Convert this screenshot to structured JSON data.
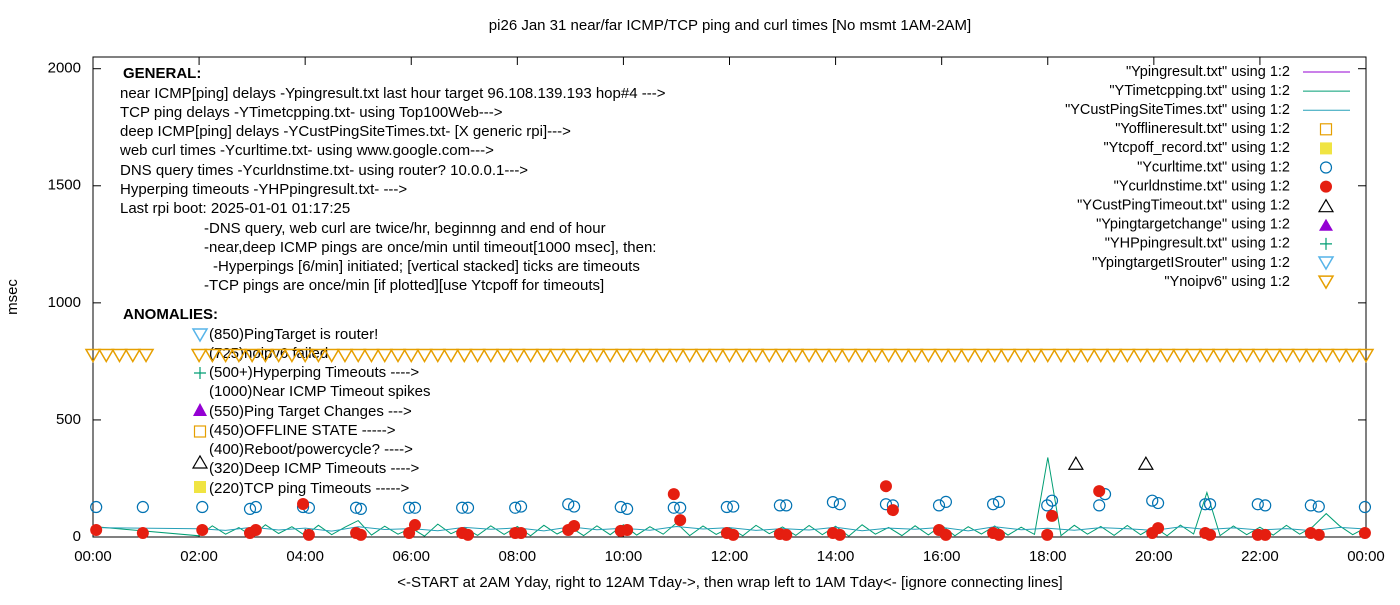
{
  "chart_data": {
    "type": "scatter",
    "title": "pi26 Jan 31  near/far ICMP/TCP ping and curl times [No msmt 1AM-2AM]",
    "x_label": "<-START at 2AM Yday, right to 12AM Tday->, then wrap left to 1AM Tday<- [ignore connecting lines]",
    "y_label": "msec",
    "xlim": [
      0,
      24
    ],
    "xticks": [
      {
        "value": 0,
        "label": "00:00"
      },
      {
        "value": 2,
        "label": "02:00"
      },
      {
        "value": 4,
        "label": "04:00"
      },
      {
        "value": 6,
        "label": "06:00"
      },
      {
        "value": 8,
        "label": "08:00"
      },
      {
        "value": 10,
        "label": "10:00"
      },
      {
        "value": 12,
        "label": "12:00"
      },
      {
        "value": 14,
        "label": "14:00"
      },
      {
        "value": 16,
        "label": "16:00"
      },
      {
        "value": 18,
        "label": "18:00"
      },
      {
        "value": 20,
        "label": "20:00"
      },
      {
        "value": 22,
        "label": "22:00"
      },
      {
        "value": 24,
        "label": "00:00"
      }
    ],
    "ylim": [
      0,
      2050
    ],
    "yticks": [
      0,
      500,
      1000,
      1500,
      2000
    ],
    "legend": "top-right",
    "annotations": {
      "general_heading": "GENERAL:",
      "general": [
        "near ICMP[ping] delays -Ypingresult.txt last hour target 96.108.139.193 hop#4 --->",
        "TCP ping delays -YTimetcpping.txt- using Top100Web--->",
        "deep ICMP[ping] delays -YCustPingSiteTimes.txt- [X generic rpi]--->",
        "web curl times -Ycurltime.txt- using www.google.com--->",
        "DNS query times -Ycurldnstime.txt- using router? 10.0.0.1--->",
        "Hyperping timeouts -YHPpingresult.txt- --->",
        "Last rpi boot: 2025-01-01 01:17:25",
        "-DNS query, web curl are twice/hr, beginnng and end of hour",
        "-near,deep ICMP pings are once/min until timeout[1000 msec], then:",
        "-Hyperpings [6/min] initiated; [vertical stacked] ticks are timeouts",
        "-TCP pings are once/min [if plotted][use Ytcpoff for timeouts]"
      ],
      "anomalies_heading": "ANOMALIES:",
      "anomalies": [
        "(850)PingTarget is router!",
        "(725)noipv6 failed",
        "(500+)Hyperping Timeouts ---->",
        "(1000)Near ICMP Timeout spikes",
        "(550)Ping Target Changes --->",
        "(450)OFFLINE STATE ----->",
        "(400)Reboot/powercycle? ---->",
        "(320)Deep ICMP Timeouts ---->",
        "(220)TCP ping Timeouts ----->"
      ]
    },
    "series": [
      {
        "name": "\"Ypingresult.txt\" using 1:2",
        "color": "#9400d3",
        "marker": "line",
        "x": [],
        "values": []
      },
      {
        "name": "\"YTimetcpping.txt\" using 1:2",
        "color": "#009e73",
        "marker": "line",
        "x": [
          0,
          2,
          2.25,
          2.5,
          2.75,
          3,
          3.25,
          3.5,
          3.75,
          4,
          4.25,
          4.5,
          4.75,
          5,
          5.25,
          5.5,
          5.75,
          6,
          6.25,
          6.5,
          6.75,
          7,
          7.25,
          7.5,
          7.75,
          8,
          8.25,
          8.5,
          8.75,
          9,
          9.25,
          9.5,
          9.75,
          10,
          10.25,
          10.5,
          10.75,
          11,
          11.25,
          11.5,
          11.75,
          12,
          12.25,
          12.5,
          12.75,
          13,
          13.25,
          13.5,
          13.75,
          14,
          14.25,
          14.5,
          14.75,
          15,
          15.25,
          15.5,
          15.75,
          16,
          16.25,
          16.5,
          16.75,
          17,
          17.25,
          17.5,
          17.75,
          18,
          18.25,
          18.5,
          18.75,
          19,
          19.25,
          19.5,
          19.75,
          20,
          20.25,
          20.5,
          20.75,
          21,
          21.25,
          21.5,
          21.75,
          22,
          22.25,
          22.5,
          22.75,
          23,
          23.25,
          23.5,
          23.75,
          24
        ],
        "values": [
          45,
          5,
          48,
          12,
          40,
          3,
          52,
          15,
          44,
          6,
          50,
          10,
          42,
          70,
          8,
          46,
          12,
          38,
          4,
          55,
          14,
          40,
          7,
          48,
          11,
          45,
          5,
          50,
          13,
          42,
          6,
          48,
          10,
          52,
          8,
          44,
          12,
          60,
          6,
          47,
          11,
          40,
          5,
          50,
          14,
          43,
          7,
          49,
          10,
          46,
          4,
          52,
          12,
          41,
          6,
          48,
          9,
          50,
          5,
          44,
          13,
          47,
          8,
          42,
          11,
          340,
          6,
          50,
          12,
          45,
          7,
          49,
          10,
          44,
          5,
          51,
          13,
          190,
          6,
          47,
          10,
          42,
          8,
          50,
          12,
          45,
          100,
          48,
          10,
          40
        ]
      },
      {
        "name": "\"YCustPingSiteTimes.txt\" using 1:2",
        "color": "#26a0b8",
        "marker": "line",
        "x": [
          0,
          2,
          2.5,
          3,
          3.5,
          4,
          4.5,
          5,
          5.5,
          6,
          6.5,
          7,
          7.5,
          8,
          8.5,
          9,
          9.5,
          10,
          10.5,
          11,
          11.5,
          12,
          12.5,
          13,
          13.5,
          14,
          14.5,
          15,
          15.5,
          16,
          16.5,
          17,
          17.5,
          18,
          18.5,
          19,
          19.5,
          20,
          20.5,
          21,
          21.5,
          22,
          22.5,
          23,
          23.5,
          24
        ],
        "values": [
          40,
          35,
          28,
          42,
          30,
          38,
          25,
          44,
          32,
          36,
          27,
          41,
          33,
          39,
          26,
          43,
          31,
          37,
          29,
          45,
          34,
          40,
          28,
          36,
          30,
          42,
          27,
          38,
          33,
          41,
          26,
          44,
          31,
          37,
          29,
          40,
          35,
          28,
          43,
          32,
          39,
          30,
          36,
          27,
          41,
          34
        ]
      },
      {
        "name": "\"Yofflineresult.txt\" using 1:2",
        "color": "#e69f00",
        "marker": "square-open",
        "x": [],
        "values": []
      },
      {
        "name": "\"Ytcpoff_record.txt\" using 1:2",
        "color": "#f0e442",
        "marker": "square-filled",
        "x": [],
        "values": []
      },
      {
        "name": "\"Ycurltime.txt\" using 1:2",
        "color": "#0072b2",
        "marker": "circle-open",
        "x": [
          0.06,
          0.94,
          2.06,
          2.96,
          3.07,
          3.96,
          4.07,
          4.96,
          5.05,
          5.96,
          6.07,
          6.96,
          7.07,
          7.96,
          8.07,
          8.96,
          9.07,
          9.95,
          10.07,
          10.95,
          11.07,
          11.95,
          12.07,
          12.95,
          13.07,
          13.95,
          14.08,
          14.95,
          15.08,
          15.95,
          16.08,
          16.97,
          17.08,
          17.99,
          18.08,
          18.97,
          19.08,
          19.97,
          20.08,
          20.97,
          21.06,
          21.96,
          22.1,
          22.96,
          23.11,
          23.98
        ],
        "values": [
          128,
          128,
          128,
          120,
          128,
          128,
          125,
          125,
          120,
          125,
          125,
          125,
          125,
          125,
          130,
          140,
          130,
          128,
          120,
          125,
          125,
          128,
          130,
          135,
          135,
          149,
          140,
          140,
          135,
          135,
          150,
          140,
          150,
          135,
          155,
          135,
          183,
          155,
          145,
          140,
          140,
          140,
          135,
          135,
          130,
          128
        ]
      },
      {
        "name": "\"Ycurldnstime.txt\" using 1:2",
        "color": "#e51e10",
        "marker": "circle-filled",
        "x": [
          0.06,
          0.94,
          2.06,
          2.96,
          3.07,
          3.96,
          4.07,
          4.96,
          5.05,
          5.96,
          6.07,
          6.96,
          7.07,
          7.96,
          8.07,
          8.96,
          9.07,
          9.95,
          10.07,
          10.95,
          11.07,
          11.95,
          12.07,
          12.95,
          13.07,
          13.95,
          14.08,
          14.95,
          15.08,
          15.95,
          16.08,
          16.97,
          17.08,
          17.99,
          18.08,
          18.97,
          19.97,
          20.08,
          20.97,
          21.06,
          21.96,
          22.1,
          22.96,
          23.11,
          23.98
        ],
        "values": [
          30,
          17,
          30,
          17,
          30,
          141,
          9,
          17,
          9,
          17,
          51,
          17,
          9,
          17,
          17,
          30,
          47,
          26,
          30,
          183,
          72,
          17,
          9,
          13,
          9,
          17,
          9,
          217,
          115,
          30,
          9,
          17,
          9,
          9,
          90,
          196,
          17,
          38,
          17,
          9,
          9,
          9,
          17,
          9,
          17
        ]
      },
      {
        "name": "\"YCustPingTimeout.txt\" using 1:2",
        "color": "#000000",
        "marker": "triangle-open",
        "x": [
          18.53,
          19.85
        ],
        "values": [
          315,
          315
        ]
      },
      {
        "name": "\"Ypingtargetchange\" using 1:2",
        "color": "#9400d3",
        "marker": "triangle-filled",
        "x": [],
        "values": []
      },
      {
        "name": "\"YHPpingresult.txt\" using 1:2",
        "color": "#009e73",
        "marker": "plus",
        "x": [],
        "values": []
      },
      {
        "name": "\"YpingtargetISrouter\" using 1:2",
        "color": "#56b4e9",
        "marker": "triangle-down-open",
        "x": [],
        "values": []
      },
      {
        "name": "\"Ynoipv6\" using 1:2",
        "color": "#e69f00",
        "marker": "triangle-down-open",
        "x": [
          0,
          0.25,
          0.5,
          0.75,
          1,
          2,
          2.25,
          2.5,
          2.75,
          3,
          3.25,
          3.5,
          3.75,
          4,
          4.25,
          4.5,
          4.75,
          5,
          5.25,
          5.5,
          5.75,
          6,
          6.25,
          6.5,
          6.75,
          7,
          7.25,
          7.5,
          7.75,
          8,
          8.25,
          8.5,
          8.75,
          9,
          9.25,
          9.5,
          9.75,
          10,
          10.25,
          10.5,
          10.75,
          11,
          11.25,
          11.5,
          11.75,
          12,
          12.25,
          12.5,
          12.75,
          13,
          13.25,
          13.5,
          13.75,
          14,
          14.25,
          14.5,
          14.75,
          15,
          15.25,
          15.5,
          15.75,
          16,
          16.25,
          16.5,
          16.75,
          17,
          17.25,
          17.5,
          17.75,
          18,
          18.25,
          18.5,
          18.75,
          19,
          19.25,
          19.5,
          19.75,
          20,
          20.25,
          20.5,
          20.75,
          21,
          21.25,
          21.5,
          21.75,
          22,
          22.25,
          22.5,
          22.75,
          23,
          23.25,
          23.5,
          23.75,
          24
        ],
        "values": [
          775,
          775,
          775,
          775,
          775,
          775,
          775,
          775,
          775,
          775,
          775,
          775,
          775,
          775,
          775,
          775,
          775,
          775,
          775,
          775,
          775,
          775,
          775,
          775,
          775,
          775,
          775,
          775,
          775,
          775,
          775,
          775,
          775,
          775,
          775,
          775,
          775,
          775,
          775,
          775,
          775,
          775,
          775,
          775,
          775,
          775,
          775,
          775,
          775,
          775,
          775,
          775,
          775,
          775,
          775,
          775,
          775,
          775,
          775,
          775,
          775,
          775,
          775,
          775,
          775,
          775,
          775,
          775,
          775,
          775,
          775,
          775,
          775,
          775,
          775,
          775,
          775,
          775,
          775,
          775,
          775,
          775,
          775,
          775,
          775,
          775,
          775,
          775,
          775,
          775,
          775,
          775,
          775,
          775
        ]
      }
    ]
  }
}
